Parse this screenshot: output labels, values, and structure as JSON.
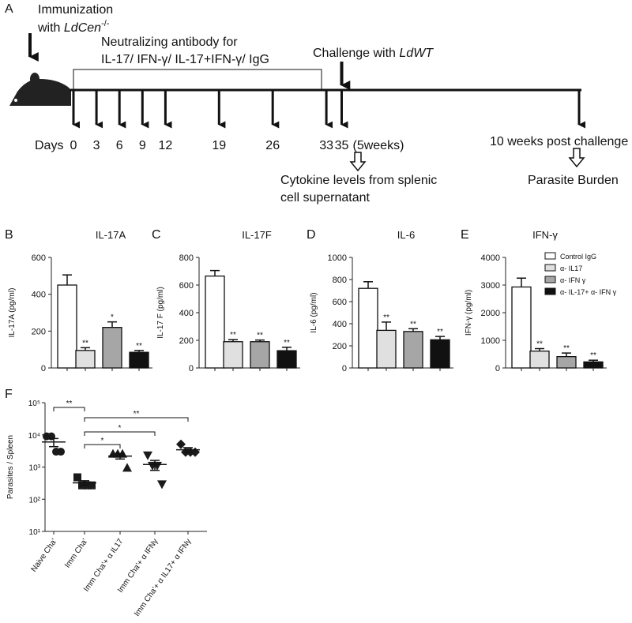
{
  "timeline": {
    "panel": "A",
    "immunization": "Immunization",
    "immunization_with": "with ",
    "immunization_strain": "LdCen",
    "immunization_strain_sup": "-/-",
    "antibody_line1": "Neutralizing antibody for",
    "antibody_line2": "IL-17/ IFN-γ/ IL-17+IFN-γ/ IgG",
    "challenge": "Challenge with ",
    "challenge_strain": "LdWT",
    "days_label": "Days",
    "days": [
      0,
      3,
      6,
      9,
      12,
      19,
      26,
      33,
      35
    ],
    "day35_note": "(5weeks)",
    "post_challenge": "10 weeks post challenge",
    "cytokine_line1": "Cytokine levels from splenic",
    "cytokine_line2": "cell supernatant",
    "parasite_burden": "Parasite Burden"
  },
  "chart_data": [
    {
      "type": "bar",
      "panel": "B",
      "title": "IL-17A",
      "y_label": "IL-17A (pg/ml)",
      "ylim": [
        0,
        600
      ],
      "yticks": [
        0,
        200,
        400,
        600
      ],
      "series": [
        {
          "color": "#ffffff",
          "values": [
            450
          ],
          "errors": [
            55
          ]
        },
        {
          "color": "#e0e0e0",
          "values": [
            95
          ],
          "errors": [
            15
          ],
          "annotation": "**"
        },
        {
          "color": "#a6a6a6",
          "values": [
            220
          ],
          "errors": [
            30
          ],
          "annotation": "*"
        },
        {
          "color": "#111111",
          "values": [
            85
          ],
          "errors": [
            10
          ],
          "annotation": "**"
        }
      ]
    },
    {
      "type": "bar",
      "panel": "C",
      "title": "IL-17F",
      "y_label": "IL-17 F (pg/ml)",
      "ylim": [
        0,
        800
      ],
      "yticks": [
        0,
        200,
        400,
        600,
        800
      ],
      "series": [
        {
          "color": "#ffffff",
          "values": [
            665
          ],
          "errors": [
            40
          ]
        },
        {
          "color": "#e0e0e0",
          "values": [
            190
          ],
          "errors": [
            15
          ],
          "annotation": "**"
        },
        {
          "color": "#a6a6a6",
          "values": [
            190
          ],
          "errors": [
            12
          ],
          "annotation": "**"
        },
        {
          "color": "#111111",
          "values": [
            125
          ],
          "errors": [
            25
          ],
          "annotation": "**"
        }
      ]
    },
    {
      "type": "bar",
      "panel": "D",
      "title": "IL-6",
      "y_label": "IL-6 (pg/ml)",
      "ylim": [
        0,
        1000
      ],
      "yticks": [
        0,
        200,
        400,
        600,
        800,
        1000
      ],
      "series": [
        {
          "color": "#ffffff",
          "values": [
            720
          ],
          "errors": [
            60
          ]
        },
        {
          "color": "#e0e0e0",
          "values": [
            340
          ],
          "errors": [
            75
          ],
          "annotation": "**"
        },
        {
          "color": "#a6a6a6",
          "values": [
            330
          ],
          "errors": [
            25
          ],
          "annotation": "**"
        },
        {
          "color": "#111111",
          "values": [
            255
          ],
          "errors": [
            30
          ],
          "annotation": "**"
        }
      ]
    },
    {
      "type": "bar",
      "panel": "E",
      "title": "IFN-γ",
      "y_label": "IFN-γ (pg/ml)",
      "ylim": [
        0,
        4000
      ],
      "yticks": [
        0,
        1000,
        2000,
        3000,
        4000
      ],
      "legend": "upper right",
      "series": [
        {
          "name": "Control IgG",
          "color": "#ffffff",
          "values": [
            2930
          ],
          "errors": [
            320
          ]
        },
        {
          "name": "α- IL17",
          "color": "#e0e0e0",
          "values": [
            610
          ],
          "errors": [
            90
          ],
          "annotation": "**"
        },
        {
          "name": "α- IFN γ",
          "color": "#a6a6a6",
          "values": [
            410
          ],
          "errors": [
            130
          ],
          "annotation": "**"
        },
        {
          "name": "α- IL-17+ α- IFN γ",
          "color": "#111111",
          "values": [
            220
          ],
          "errors": [
            60
          ],
          "annotation": "**"
        }
      ]
    },
    {
      "type": "scatter",
      "panel": "F",
      "y_label": "Parasites / Spleen",
      "log_y": true,
      "ylim": [
        10,
        100000
      ],
      "yticks": [
        {
          "value": 10,
          "label": "10¹"
        },
        {
          "value": 100,
          "label": "10²"
        },
        {
          "value": 1000,
          "label": "10³"
        },
        {
          "value": 10000,
          "label": "10⁴"
        },
        {
          "value": 100000,
          "label": "10⁵"
        }
      ],
      "categories": [
        "Naive Cha'",
        "Imm Cha'",
        "Imm Cha'+ α IL17",
        "Imm Cha'+ α IFNγ",
        "Imm Cha'+ α IL17+ α IFNγ"
      ],
      "series": [
        {
          "marker": "circle",
          "color": "#1a1a1a",
          "values": [
            9000,
            9000,
            3000,
            3000
          ],
          "mean": 6000,
          "sem": 1700
        },
        {
          "marker": "square",
          "color": "#1a1a1a",
          "values": [
            480,
            270,
            270,
            270
          ],
          "mean": 323,
          "sem": 52
        },
        {
          "marker": "triangle-up",
          "color": "#1a1a1a",
          "values": [
            2600,
            2600,
            2600,
            950
          ],
          "mean": 2190,
          "sem": 410
        },
        {
          "marker": "triangle-down",
          "color": "#1a1a1a",
          "values": [
            2300,
            1100,
            1100,
            290
          ],
          "mean": 1200,
          "sem": 410
        },
        {
          "marker": "diamond",
          "color": "#1a1a1a",
          "values": [
            5100,
            2900,
            2900,
            2900
          ],
          "mean": 3450,
          "sem": 550
        }
      ],
      "comparisons": [
        {
          "between": [
            0,
            1
          ],
          "label": "**"
        },
        {
          "between": [
            1,
            4
          ],
          "label": "**"
        },
        {
          "between": [
            1,
            3
          ],
          "label": "*"
        },
        {
          "between": [
            1,
            2
          ],
          "label": "*"
        }
      ]
    }
  ]
}
